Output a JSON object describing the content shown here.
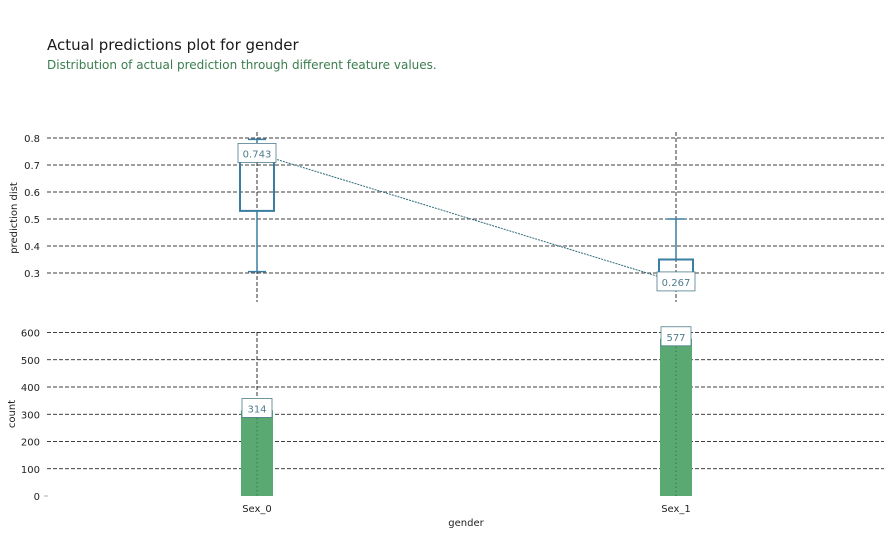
{
  "title": "Actual predictions plot for gender",
  "subtitle": "Distribution of actual prediction through different feature values.",
  "colors": {
    "box": "#3a7ea1",
    "bar": "#5aa972",
    "label_text": "#4e7d8c",
    "grid": "#000000",
    "subtitle": "#3a7d4e"
  },
  "chart_data": [
    {
      "type": "box",
      "ylabel": "prediction dist",
      "ylim": [
        0.2,
        0.82
      ],
      "yticks": [
        0.3,
        0.4,
        0.5,
        0.6,
        0.7,
        0.8
      ],
      "ytick_labels": [
        "0.3",
        "0.4",
        "0.5",
        "0.6",
        "0.7",
        "0.8"
      ],
      "categories": [
        "Sex_0",
        "Sex_1"
      ],
      "boxes": [
        {
          "category": "Sex_0",
          "whisker_low": 0.305,
          "q1": 0.53,
          "median": 0.743,
          "q3": 0.77,
          "whisker_high": 0.795,
          "mean": 0.743,
          "mean_label": "0.743"
        },
        {
          "category": "Sex_1",
          "whisker_low": 0.285,
          "q1": 0.285,
          "median": 0.285,
          "q3": 0.35,
          "whisker_high": 0.5,
          "mean": 0.267,
          "mean_label": "0.267"
        }
      ],
      "grid": true
    },
    {
      "type": "bar",
      "xlabel": "gender",
      "ylabel": "count",
      "ylim": [
        0,
        600
      ],
      "yticks": [
        0,
        100,
        200,
        300,
        400,
        500,
        600
      ],
      "ytick_labels": [
        "0",
        "100",
        "200",
        "300",
        "400",
        "500",
        "600"
      ],
      "categories": [
        "Sex_0",
        "Sex_1"
      ],
      "values": [
        314,
        577
      ],
      "value_labels": [
        "314",
        "577"
      ],
      "grid": true
    }
  ]
}
